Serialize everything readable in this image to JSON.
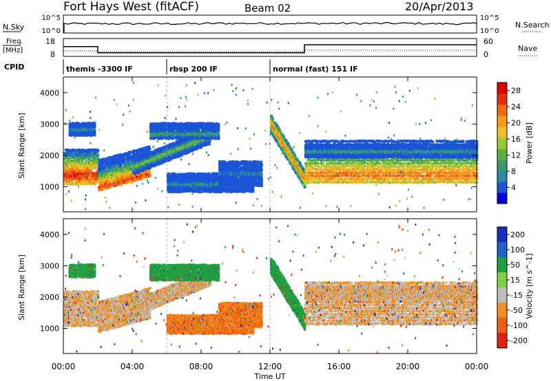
{
  "header": {
    "station": "Fort Hays West (fitACF)",
    "beam": "Beam 02",
    "date": "20/Apr/2013"
  },
  "panels": {
    "nsky_label": "N.Sky",
    "nsky_ticks": [
      "10^5",
      "10^0"
    ],
    "nsearch_label": "N.Search",
    "nsearch_ticks": [
      "10^5",
      "10^0"
    ],
    "freq_label_1": "Freq.",
    "freq_label_2": "[MHz]",
    "freq_ticks": [
      "18",
      "8"
    ],
    "nave_label": "Nave",
    "nave_ticks": [
      "60",
      "0"
    ],
    "cpid_label": "CPID"
  },
  "chart_data": {
    "type": "heatmap",
    "xlabel": "Time UT",
    "x_ticks": [
      "00:00",
      "04:00",
      "08:00",
      "12:00",
      "16:00",
      "20:00",
      "00:00"
    ],
    "xlim": [
      0,
      24
    ],
    "ylabel": "Slant Range [km]",
    "y_ticks": [
      1000,
      2000,
      3000,
      4000
    ],
    "ylim": [
      200,
      4500
    ],
    "cpid_segments": [
      {
        "label": "themis -3300 IF",
        "start": 0,
        "end": 6
      },
      {
        "label": "rbsp 200 IF",
        "start": 6,
        "end": 12
      },
      {
        "label": "normal (fast) 151 IF",
        "start": 12,
        "end": 24
      }
    ],
    "frequency_mhz": [
      {
        "start": 0,
        "end": 2,
        "value": 13.5
      },
      {
        "start": 2,
        "end": 14,
        "value": 10.0
      },
      {
        "start": 14,
        "end": 24,
        "value": 14.5
      }
    ],
    "power": {
      "colorbar_label": "Power [dB]",
      "colorbar_ticks": [
        4,
        8,
        12,
        16,
        20,
        24,
        28
      ],
      "range": [
        0,
        30
      ],
      "colors": [
        "#0000e0",
        "#1a55d8",
        "#2a8aa0",
        "#3a9a6a",
        "#5fb040",
        "#9cc832",
        "#f0c020",
        "#f59a18",
        "#f06a10",
        "#e83010",
        "#e00000"
      ]
    },
    "velocity": {
      "colorbar_label": "Velocity [m s^-1]",
      "colorbar_ticks": [
        "200",
        "100",
        "50",
        "15",
        "-15",
        "-50",
        "-100",
        "-200"
      ],
      "colors": [
        "#1a2cc0",
        "#2060c8",
        "#20a040",
        "#80d040",
        "#bebebe",
        "#f09020",
        "#f06010",
        "#e02010"
      ]
    },
    "echo_regions": [
      {
        "t0": 0.0,
        "t1": 2.0,
        "r0": 1050,
        "r1": 2200,
        "core": 1350,
        "power": 28,
        "vel": -15
      },
      {
        "t0": 0.3,
        "t1": 1.8,
        "r0": 2600,
        "r1": 3000,
        "core": 2800,
        "power": 8,
        "vel": 50
      },
      {
        "t0": 2.0,
        "t1": 5.0,
        "r0": 850,
        "r1": 2100,
        "core": 1100,
        "power": 26,
        "vel": -15
      },
      {
        "t0": 4.0,
        "t1": 8.5,
        "r0": 1400,
        "r1": 2800,
        "core": 2100,
        "power": 14,
        "vel": -15
      },
      {
        "t0": 5.0,
        "t1": 9.0,
        "r0": 2500,
        "r1": 3000,
        "core": 2650,
        "power": 10,
        "vel": 50
      },
      {
        "t0": 6.0,
        "t1": 11.0,
        "r0": 800,
        "r1": 1400,
        "core": 1050,
        "power": 8,
        "vel": -50
      },
      {
        "t0": 9.0,
        "t1": 11.5,
        "r0": 1000,
        "r1": 1800,
        "core": 1400,
        "power": 6,
        "vel": -50
      },
      {
        "t0": 12.0,
        "t1": 14.0,
        "r0": 1000,
        "r1": 3000,
        "core": 1500,
        "power": 24,
        "vel": 50
      },
      {
        "t0": 14.0,
        "t1": 24.0,
        "r0": 1100,
        "r1": 2500,
        "core": 1350,
        "power": 24,
        "vel": -15
      },
      {
        "t0": 14.0,
        "t1": 24.0,
        "r0": 1900,
        "r1": 2300,
        "core": 2100,
        "power": 10,
        "vel": -15
      }
    ]
  }
}
